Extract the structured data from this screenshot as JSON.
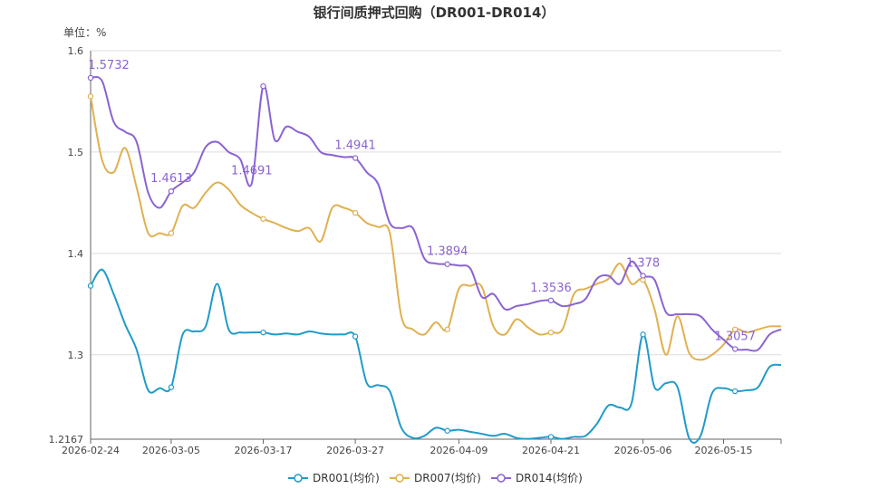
{
  "chart_data": {
    "type": "line",
    "title": "银行间质押式回购（DR001-DR014）",
    "unit_label": "单位：%",
    "x_tick_labels": [
      "2026-02-24",
      "2026-03-05",
      "2026-03-17",
      "2026-03-27",
      "2026-04-09",
      "2026-04-21",
      "2026-05-06",
      "2026-05-15"
    ],
    "x_tick_index": [
      0,
      7,
      15,
      23,
      32,
      40,
      48,
      55
    ],
    "y_tick_labels": [
      "1.2167",
      "1.3",
      "1.4",
      "1.5",
      "1.6"
    ],
    "ylim": [
      1.2167,
      1.6
    ],
    "grid": true,
    "legend_position": "bottom",
    "series": [
      {
        "name": "DR001(均价)",
        "color": "#1f9bc9",
        "values": [
          1.368,
          1.384,
          1.36,
          1.33,
          1.305,
          1.265,
          1.267,
          1.268,
          1.32,
          1.323,
          1.328,
          1.37,
          1.325,
          1.322,
          1.322,
          1.322,
          1.32,
          1.321,
          1.32,
          1.323,
          1.321,
          1.32,
          1.32,
          1.318,
          1.272,
          1.27,
          1.264,
          1.228,
          1.218,
          1.22,
          1.228,
          1.225,
          1.226,
          1.224,
          1.222,
          1.22,
          1.222,
          1.218,
          1.217,
          1.218,
          1.219,
          1.217,
          1.219,
          1.22,
          1.232,
          1.25,
          1.248,
          1.252,
          1.32,
          1.268,
          1.272,
          1.268,
          1.218,
          1.22,
          1.262,
          1.267,
          1.264,
          1.265,
          1.268,
          1.288,
          1.29
        ]
      },
      {
        "name": "DR007(均价)",
        "color": "#e0b050",
        "values": [
          1.555,
          1.492,
          1.48,
          1.504,
          1.465,
          1.42,
          1.42,
          1.42,
          1.447,
          1.445,
          1.46,
          1.47,
          1.463,
          1.448,
          1.44,
          1.434,
          1.43,
          1.425,
          1.422,
          1.425,
          1.412,
          1.445,
          1.445,
          1.44,
          1.43,
          1.426,
          1.42,
          1.338,
          1.325,
          1.32,
          1.332,
          1.325,
          1.365,
          1.368,
          1.367,
          1.328,
          1.32,
          1.335,
          1.327,
          1.32,
          1.322,
          1.325,
          1.36,
          1.365,
          1.37,
          1.375,
          1.39,
          1.37,
          1.374,
          1.345,
          1.3,
          1.338,
          1.302,
          1.295,
          1.3,
          1.31,
          1.325,
          1.322,
          1.325,
          1.328,
          1.328
        ]
      },
      {
        "name": "DR014(均价)",
        "color": "#8a63d2",
        "values": [
          1.5732,
          1.57,
          1.53,
          1.52,
          1.51,
          1.46,
          1.445,
          1.4613,
          1.47,
          1.48,
          1.505,
          1.51,
          1.5,
          1.493,
          1.4691,
          1.565,
          1.512,
          1.525,
          1.52,
          1.515,
          1.5,
          1.497,
          1.495,
          1.4941,
          1.48,
          1.468,
          1.43,
          1.425,
          1.425,
          1.395,
          1.39,
          1.3894,
          1.388,
          1.385,
          1.357,
          1.36,
          1.345,
          1.348,
          1.35,
          1.353,
          1.3536,
          1.348,
          1.35,
          1.355,
          1.375,
          1.378,
          1.37,
          1.392,
          1.378,
          1.374,
          1.342,
          1.34,
          1.34,
          1.338,
          1.325,
          1.315,
          1.3057,
          1.305,
          1.305,
          1.32,
          1.325
        ]
      }
    ],
    "annotations": [
      {
        "series": 2,
        "index": 0,
        "label": "1.5732"
      },
      {
        "series": 2,
        "index": 7,
        "label": "1.4613"
      },
      {
        "series": 2,
        "index": 14,
        "label": "1.4691"
      },
      {
        "series": 2,
        "index": 23,
        "label": "1.4941"
      },
      {
        "series": 2,
        "index": 31,
        "label": "1.3894"
      },
      {
        "series": 2,
        "index": 40,
        "label": "1.3536"
      },
      {
        "series": 2,
        "index": 48,
        "label": "1.378"
      },
      {
        "series": 2,
        "index": 56,
        "label": "1.3057"
      }
    ],
    "marker_indices": [
      0,
      7,
      15,
      23,
      31,
      40,
      48,
      56
    ]
  }
}
